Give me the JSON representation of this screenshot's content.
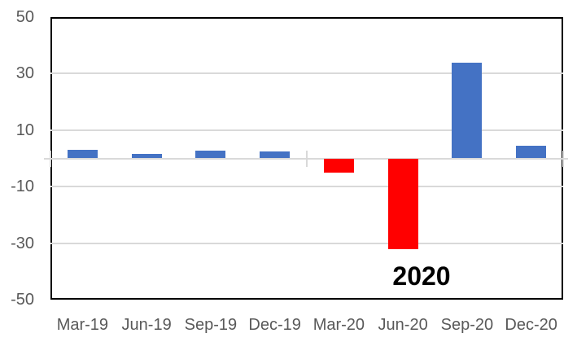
{
  "chart_data": {
    "type": "bar",
    "categories": [
      "Mar-19",
      "Jun-19",
      "Sep-19",
      "Dec-19",
      "Mar-20",
      "Jun-20",
      "Sep-20",
      "Dec-20"
    ],
    "values": [
      3,
      1.5,
      2.8,
      2.4,
      -5,
      -32,
      34,
      4.5
    ],
    "bar_colors": [
      "#4472C4",
      "#4472C4",
      "#4472C4",
      "#4472C4",
      "#FF0000",
      "#FF0000",
      "#4472C4",
      "#4472C4"
    ],
    "title": "",
    "xlabel": "",
    "ylabel": "",
    "ylim": [
      -50,
      50
    ],
    "y_ticks": [
      50,
      30,
      10,
      -10,
      -30,
      -50
    ],
    "grid": true,
    "legend": "none",
    "annotation": "2020"
  },
  "colors": {
    "blue_series": "#4472C4",
    "red_series": "#FF0000",
    "gridline": "#d9d9d9",
    "axis_text": "#595959",
    "plot_border": "#000000",
    "annotation_text": "#000000",
    "background": "#ffffff"
  }
}
